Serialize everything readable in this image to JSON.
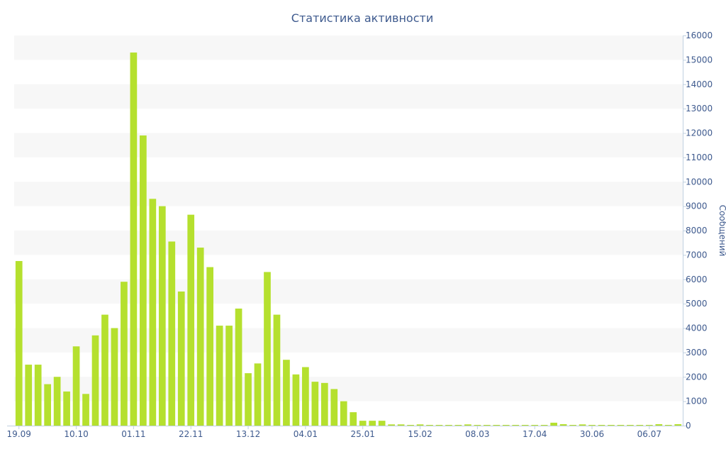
{
  "chart_data": {
    "type": "bar",
    "title": "Статистика активности",
    "xlabel": "",
    "ylabel": "Сообщений",
    "y_axis_side": "right",
    "ylim": [
      0,
      16000
    ],
    "yticks": [
      0,
      1000,
      2000,
      3000,
      4000,
      5000,
      6000,
      7000,
      8000,
      9000,
      10000,
      11000,
      12000,
      13000,
      14000,
      15000,
      16000
    ],
    "x_tick_labels": [
      "19.09",
      "10.10",
      "01.11",
      "22.11",
      "13.12",
      "04.01",
      "25.01",
      "15.02",
      "08.03",
      "17.04",
      "30.06",
      "06.07"
    ],
    "x_tick_bar_index": [
      0,
      6,
      12,
      18,
      24,
      30,
      36,
      42,
      48,
      54,
      60,
      66
    ],
    "grid": "horizontal alternating bands",
    "bar_color": "#b5e02e",
    "band_color": "#f7f7f7",
    "text_color": "#3e5a8e",
    "values": [
      6750,
      2500,
      2500,
      1700,
      2000,
      1400,
      3250,
      1300,
      3700,
      4550,
      4000,
      5900,
      15300,
      11900,
      9300,
      9000,
      7550,
      5500,
      8650,
      7300,
      6500,
      4100,
      4100,
      4800,
      2150,
      2550,
      6300,
      4550,
      2700,
      2100,
      2400,
      1800,
      1750,
      1500,
      1000,
      550,
      200,
      200,
      200,
      50,
      50,
      30,
      50,
      30,
      30,
      30,
      30,
      50,
      30,
      30,
      30,
      30,
      30,
      30,
      30,
      30,
      120,
      60,
      30,
      50,
      30,
      30,
      30,
      30,
      30,
      30,
      30,
      60,
      30,
      60
    ]
  }
}
